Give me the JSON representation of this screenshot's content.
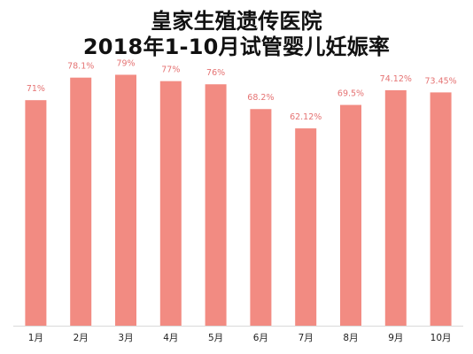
{
  "chart_data": {
    "type": "bar",
    "title_lines": [
      "皇家生殖遗传医院",
      "2018年1-10月试管婴儿妊娠率"
    ],
    "categories": [
      "1月",
      "2月",
      "3月",
      "4月",
      "5月",
      "6月",
      "7月",
      "8月",
      "9月",
      "10月"
    ],
    "values": [
      71,
      78.1,
      79,
      77,
      76,
      68.2,
      62.12,
      69.5,
      74.12,
      73.45
    ],
    "value_labels": [
      "71%",
      "78.1%",
      "79%",
      "77%",
      "76%",
      "68.2%",
      "62.12%",
      "69.5%",
      "74.12%",
      "73.45%"
    ],
    "ylim": [
      0,
      90
    ],
    "grid": false,
    "colors": {
      "bar": "#f28b82",
      "label": "#e57373",
      "axis": "#d9d9d9"
    }
  }
}
